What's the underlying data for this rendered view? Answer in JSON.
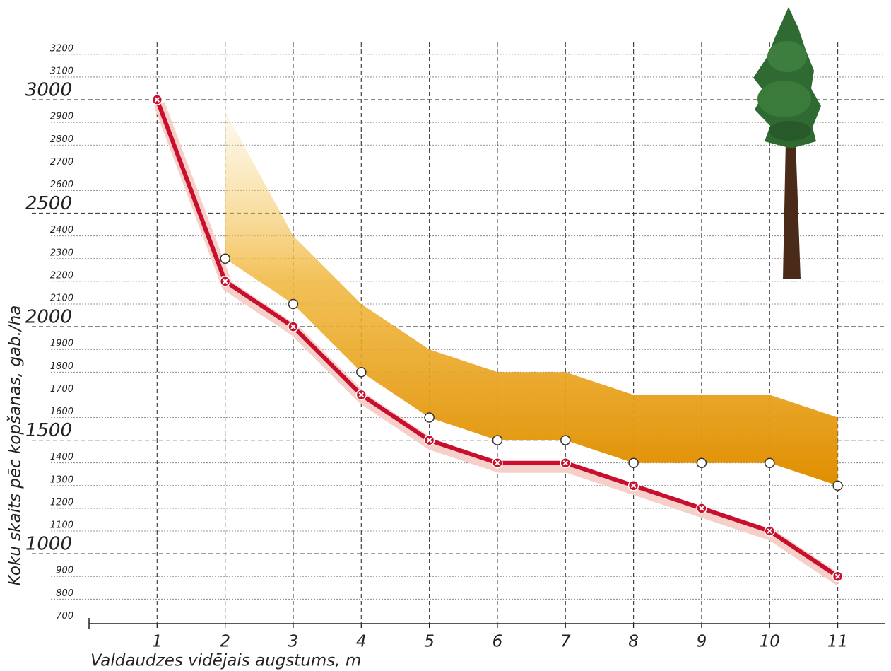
{
  "chart_data": {
    "type": "line",
    "x_label": "Valdaudzes vidējais augstums, m",
    "y_label": "Koku skaits pēc kopšanas, gab./ha",
    "x": [
      1,
      2,
      3,
      4,
      5,
      6,
      7,
      8,
      9,
      10,
      11
    ],
    "series": [
      {
        "color": "#c8102e",
        "marker": "x-circle",
        "values": [
          3000,
          2200,
          2000,
          1700,
          1500,
          1400,
          1400,
          1300,
          1200,
          1100,
          900
        ]
      },
      {
        "color": "#ffffff",
        "marker": "circle",
        "values": [
          null,
          2300,
          2100,
          1800,
          1600,
          1500,
          1500,
          1400,
          1400,
          1400,
          1300
        ]
      },
      {
        "color": "#e89a0c",
        "marker": "band",
        "band_below": 1,
        "values": [
          null,
          2950,
          2400,
          2100,
          1900,
          1800,
          1800,
          1700,
          1700,
          1700,
          1600
        ]
      }
    ],
    "xlim": [
      0,
      11.7
    ],
    "ylim": [
      692,
      3240
    ],
    "xticks": [
      1,
      2,
      3,
      4,
      5,
      6,
      7,
      8,
      9,
      10,
      11
    ],
    "yticks": [
      700,
      800,
      900,
      1000,
      1100,
      1200,
      1300,
      1400,
      1500,
      1600,
      1700,
      1800,
      1900,
      2000,
      2100,
      2200,
      2300,
      2400,
      2500,
      2600,
      2700,
      2800,
      2900,
      3000,
      3100,
      3200
    ],
    "grid": true
  }
}
